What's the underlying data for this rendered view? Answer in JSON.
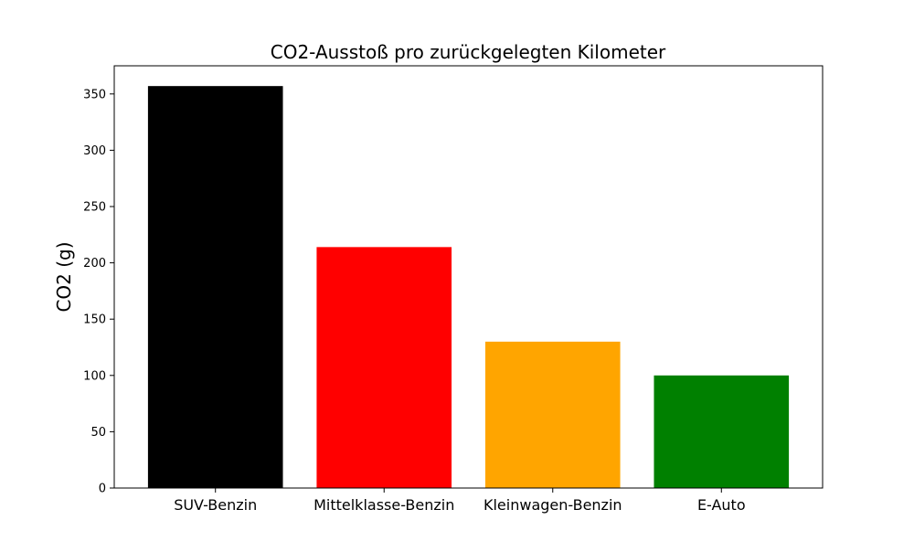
{
  "chart_data": {
    "type": "bar",
    "title": "CO2-Ausstoß pro zurückgelegten Kilometer",
    "xlabel": "",
    "ylabel": "CO2 (g)",
    "categories": [
      "SUV-Benzin",
      "Mittelklasse-Benzin",
      "Kleinwagen-Benzin",
      "E-Auto"
    ],
    "values": [
      357,
      214,
      130,
      100
    ],
    "colors": [
      "#000000",
      "#ff0000",
      "#ffa500",
      "#008000"
    ],
    "ylim": [
      0,
      375
    ],
    "yticks": [
      0,
      50,
      100,
      150,
      200,
      250,
      300,
      350
    ],
    "grid": false,
    "legend": "none"
  }
}
